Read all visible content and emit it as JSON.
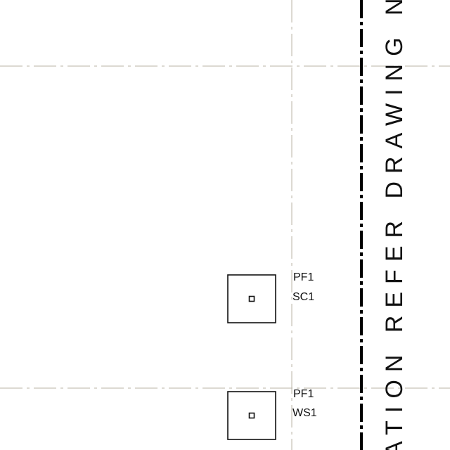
{
  "drawing": {
    "line_color": "#000000",
    "grid_color": "#b9b3a6",
    "note_text": "ATION REFER DRAWING No. S",
    "footings": [
      {
        "pad_label": "PF1",
        "ref_label": "SC1"
      },
      {
        "pad_label": "PF1",
        "ref_label": "WS1"
      }
    ]
  }
}
